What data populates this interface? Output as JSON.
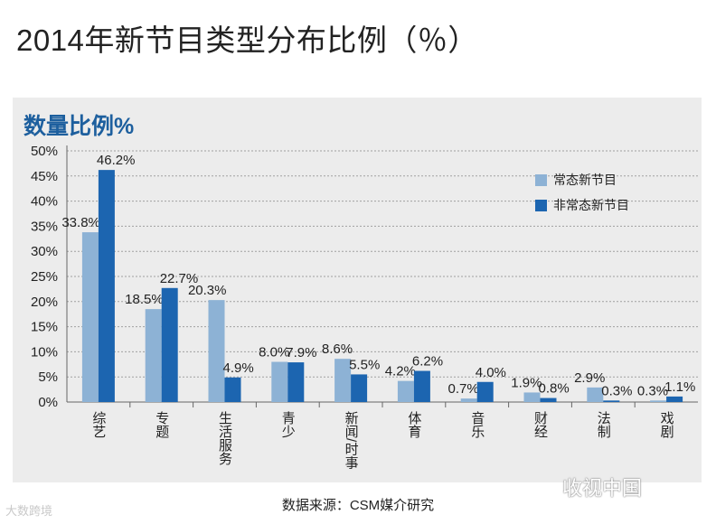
{
  "page_title": "2014年新节目类型分布比例（％）",
  "panel_title": "数量比例%",
  "source_text": "数据来源：CSM媒介研究",
  "watermark_left": "大数跨境",
  "watermark_right": "收视中国",
  "colors": {
    "series1": "#8db2d5",
    "series2": "#1c65b0",
    "grid": "#a0a0a0",
    "panel_bg": "#ececec"
  },
  "chart_data": {
    "type": "bar",
    "title": "数量比例%",
    "categories": [
      "综艺",
      "专题",
      "生活服务",
      "青少",
      "新闻/时事",
      "体育",
      "音乐",
      "财经",
      "法制",
      "戏剧"
    ],
    "series": [
      {
        "name": "常态新节目",
        "values": [
          33.8,
          18.5,
          20.3,
          8.0,
          8.6,
          4.2,
          0.7,
          1.9,
          2.9,
          0.3
        ]
      },
      {
        "name": "非常态新节目",
        "values": [
          46.2,
          22.7,
          4.9,
          7.9,
          5.5,
          6.2,
          4.0,
          0.8,
          0.3,
          1.1
        ]
      }
    ],
    "value_labels": [
      [
        "33.8%",
        "18.5%",
        "20.3%",
        "8.0%",
        "8.6%",
        "4.2%",
        "0.7%",
        "1.9%",
        "2.9%",
        "0.3%"
      ],
      [
        "46.2%",
        "22.7%",
        "4.9%",
        "7.9%",
        "5.5%",
        "6.2%",
        "4.0%",
        "0.8%",
        "0.3%",
        "1.1%"
      ]
    ],
    "ylim": [
      0,
      50
    ],
    "yticks": [
      "0%",
      "5%",
      "10%",
      "15%",
      "20%",
      "25%",
      "30%",
      "35%",
      "40%",
      "45%",
      "50%"
    ],
    "xlabel": "",
    "ylabel": "",
    "legend_position": "right",
    "grid": true
  }
}
